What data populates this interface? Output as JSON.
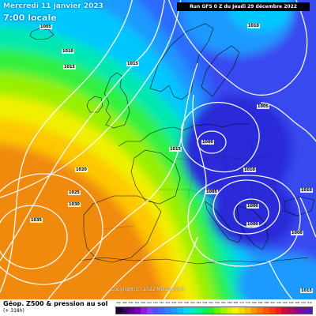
{
  "header": {
    "date_line1": "Mercredi 11 janvier 2023",
    "date_line2": "7:00 locale",
    "run_info": "Run GFS 0 Z du Jeudi 29 décembre 2022"
  },
  "copyright": "Copyright (c) 2022 Meteociel.fr",
  "footer": {
    "title": "Géop. Z500 & pression au sol",
    "subtitle": "(+ 318h)"
  },
  "isobar_labels": [
    "1005",
    "1010",
    "1015",
    "1015",
    "1020",
    "1025",
    "1030",
    "1035",
    "1010",
    "1005",
    "1015",
    "1000",
    "1010",
    "1000",
    "1005",
    "1010",
    "1000",
    "1015",
    "1000"
  ],
  "scale": {
    "labels": [
      "492",
      "496",
      "500",
      "504",
      "508",
      "512",
      "516",
      "520",
      "524",
      "528",
      "532",
      "536",
      "540",
      "544",
      "548",
      "552",
      "556",
      "560",
      "564",
      "568",
      "572",
      "576",
      "580",
      "584",
      "588",
      "592",
      "596",
      "600",
      "604",
      "608",
      "612",
      "616"
    ],
    "colors": [
      "#1a0030",
      "#3a0060",
      "#560090",
      "#7000b8",
      "#8a1ed8",
      "#8040ff",
      "#5050ff",
      "#3a6aff",
      "#2a84ff",
      "#1aa0ff",
      "#0abfff",
      "#00d8f0",
      "#00e8c8",
      "#00f098",
      "#00f060",
      "#28f028",
      "#70f000",
      "#a8f000",
      "#d8f000",
      "#fff000",
      "#ffd800",
      "#ffb800",
      "#ff9800",
      "#ff7800",
      "#ff5800",
      "#ff3800",
      "#f01c1c",
      "#d00a3a",
      "#b00a5a",
      "#900a7a",
      "#70109a",
      "#5018b0"
    ]
  },
  "colors": {
    "z564": "#00c8ff",
    "z580": "#00f070",
    "z588": "#f0f000",
    "z596": "#ff8c00",
    "trough_core": "#1f1fcf"
  }
}
